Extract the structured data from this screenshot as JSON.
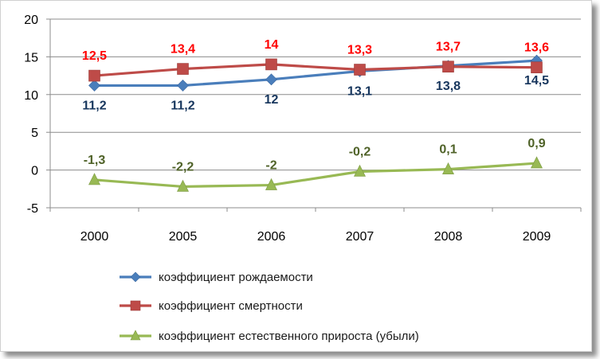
{
  "chart_data": {
    "type": "line",
    "title": "",
    "xlabel": "",
    "ylabel": "",
    "categories": [
      "2000",
      "2005",
      "2006",
      "2007",
      "2008",
      "2009"
    ],
    "ylim": [
      -5,
      20
    ],
    "yticks": [
      "-5",
      "0",
      "5",
      "10",
      "15",
      "20"
    ],
    "grid": true,
    "legend_position": "bottom",
    "series": [
      {
        "name": "коэффициент рождаемости",
        "values": [
          11.2,
          11.2,
          12,
          13.1,
          13.8,
          14.5
        ],
        "labels": [
          "11,2",
          "11,2",
          "12",
          "13,1",
          "13,8",
          "14,5"
        ],
        "color": "#4a7ebb",
        "label_color": "#17365d",
        "marker": "diamond",
        "label_position": "below"
      },
      {
        "name": "коэффициент смертности",
        "values": [
          12.5,
          13.4,
          14,
          13.3,
          13.7,
          13.6
        ],
        "labels": [
          "12,5",
          "13,4",
          "14",
          "13,3",
          "13,7",
          "13,6"
        ],
        "color": "#be4b48",
        "label_color": "#ff0000",
        "marker": "square",
        "label_position": "above"
      },
      {
        "name": "коэффициент естественного прироста (убыли)",
        "values": [
          -1.3,
          -2.2,
          -2,
          -0.2,
          0.1,
          0.9
        ],
        "labels": [
          "-1,3",
          "-2,2",
          "-2",
          "-0,2",
          "0,1",
          "0,9"
        ],
        "color": "#98b954",
        "label_color": "#4f6228",
        "marker": "triangle",
        "label_position": "above"
      }
    ]
  }
}
